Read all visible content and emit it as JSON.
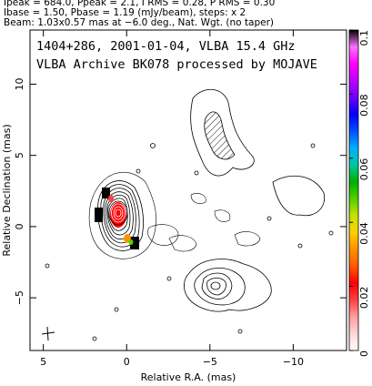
{
  "header": {
    "line1": "Ipeak = 684.0, Ppeak = 2.1, I RMS = 0.28, P RMS = 0.30",
    "line2": "Ibase = 1.50, Pbase = 1.19 (mJy/beam), steps: x 2",
    "line3": "Beam: 1.03x0.57 mas at −6.0 deg., Nat. Wgt. (no taper)"
  },
  "plot": {
    "title1": "1404+286, 2001-01-04, VLBA 15.4 GHz",
    "title2": "VLBA Archive BK078 processed by MOJAVE",
    "xlabel": "Relative R.A. (mas)",
    "ylabel": "Relative Declination (mas)",
    "xticks": [
      {
        "v": 5,
        "label": "5"
      },
      {
        "v": 0,
        "label": "0"
      },
      {
        "v": -5,
        "label": "−5"
      },
      {
        "v": -10,
        "label": "−10"
      }
    ],
    "yticks": [
      {
        "v": 10,
        "label": "10"
      },
      {
        "v": 5,
        "label": "5"
      },
      {
        "v": 0,
        "label": "0"
      },
      {
        "v": -5,
        "label": "−5"
      }
    ],
    "xrange": [
      5.8,
      -13.2
    ],
    "yrange": [
      -8.7,
      13.8
    ]
  },
  "colorbar": {
    "ticks": [
      {
        "v": 0.1,
        "label": "0.1"
      },
      {
        "v": 0.08,
        "label": "0.08"
      },
      {
        "v": 0.06,
        "label": "0.06"
      },
      {
        "v": 0.04,
        "label": "0.04"
      },
      {
        "v": 0.02,
        "label": "0.02"
      },
      {
        "v": 0,
        "label": "0"
      }
    ],
    "range": [
      0,
      0.1
    ],
    "colors": [
      "#ffffff",
      "#ffd6d6",
      "#ff9e9e",
      "#ff4040",
      "#ff0000",
      "#ff5a00",
      "#ff9000",
      "#ffd000",
      "#c8e000",
      "#50d000",
      "#00b000",
      "#00c8a0",
      "#00b0ff",
      "#0050ff",
      "#0000ff",
      "#7000ff",
      "#c000ff",
      "#ff00ff",
      "#ff70ff",
      "#000000"
    ]
  }
}
